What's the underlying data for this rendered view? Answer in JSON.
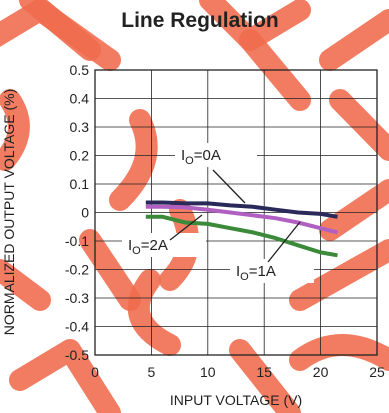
{
  "chart_data": {
    "type": "line",
    "title": "Line Regulation",
    "xlabel": "INPUT VOLTAGE (V)",
    "ylabel": "NORMALIZED OUTPUT VOLTAGE (%)",
    "xlim": [
      0,
      25
    ],
    "ylim": [
      -0.5,
      0.5
    ],
    "xticks": [
      "0",
      "5",
      "10",
      "15",
      "20",
      "25"
    ],
    "yticks": [
      "0.5",
      "0.4",
      "0.3",
      "0.2",
      "0.1",
      "0",
      "-0.1",
      "-0.2",
      "-0.3",
      "-0.4",
      "-0.5"
    ],
    "grid": true,
    "series": [
      {
        "color": "#2a2a5a",
        "x": [
          4.5,
          6,
          8,
          10,
          12,
          14,
          16,
          18,
          20,
          21.5
        ],
        "y": [
          0.035,
          0.035,
          0.032,
          0.032,
          0.025,
          0.02,
          0.01,
          0.0,
          -0.005,
          -0.015
        ]
      },
      {
        "color": "#b060c0",
        "x": [
          4.5,
          6,
          8,
          10,
          12,
          14,
          16,
          18,
          20,
          21.5
        ],
        "y": [
          0.02,
          0.02,
          0.018,
          0.01,
          0.0,
          -0.01,
          -0.02,
          -0.035,
          -0.055,
          -0.07
        ]
      },
      {
        "color": "#3a8a3a",
        "x": [
          4.5,
          6,
          8,
          10,
          12,
          14,
          16,
          18,
          20,
          21.5
        ],
        "y": [
          -0.015,
          -0.015,
          -0.035,
          -0.04,
          -0.055,
          -0.07,
          -0.09,
          -0.115,
          -0.14,
          -0.15
        ]
      }
    ],
    "annotations": [
      {
        "base": "I",
        "sub": "O",
        "rest": "=0A"
      },
      {
        "base": "I",
        "sub": "O",
        "rest": "=2A"
      },
      {
        "base": "I",
        "sub": "O",
        "rest": "=1A"
      }
    ]
  }
}
